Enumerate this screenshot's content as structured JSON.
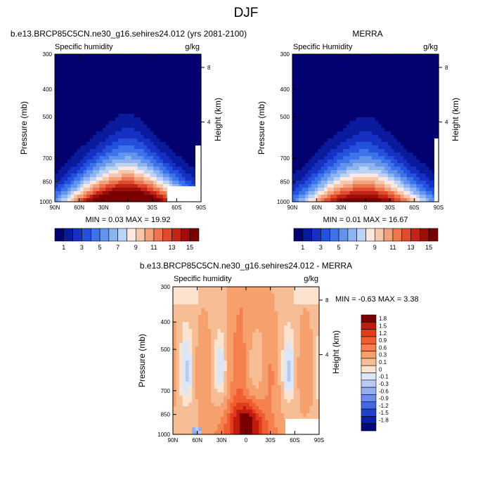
{
  "page": {
    "title": "DJF"
  },
  "panels": [
    {
      "id": "model",
      "title": "b.e13.BRCP85C5CN.ne30_g16.sehires24.012 (yrs 2081-2100)",
      "left_label": "Specific humidity",
      "right_label": "g/kg",
      "stats": "MIN =  0.03  MAX = 19.92"
    },
    {
      "id": "obs",
      "title": "MERRA",
      "left_label": "Specific Humidity",
      "right_label": "g/kg",
      "stats": "MIN =  0.01  MAX = 16.67"
    },
    {
      "id": "diff",
      "title": "b.e13.BRCP85C5CN.ne30_g16.sehires24.012 - MERRA",
      "left_label": "Specific humidity",
      "right_label": "g/kg",
      "stats": "MIN =  -0.63  MAX =   3.38"
    }
  ],
  "chart_data": [
    {
      "type": "heatmap",
      "panel": "model",
      "ylabel": "Pressure (mb)",
      "y2label": "Height (km)",
      "x_ticks": [
        "90N",
        "60N",
        "30N",
        "0",
        "30S",
        "60S",
        "90S"
      ],
      "x_range": [
        90,
        -90
      ],
      "y_ticks": [
        "300",
        "400",
        "500",
        "700",
        "850",
        "1000"
      ],
      "y_range": [
        300,
        1000
      ],
      "y_scale": "log",
      "y2_ticks": [
        "8",
        "4"
      ],
      "colorbar_labels": [
        "1",
        "3",
        "5",
        "7",
        "9",
        "11",
        "13",
        "15"
      ],
      "colorbar_colors": [
        "#03006f",
        "#0a1a9c",
        "#1630c4",
        "#2451dc",
        "#3c73ea",
        "#6294ee",
        "#8db4f1",
        "#bcd3f5",
        "#fbe9e1",
        "#f7c7ac",
        "#f3a07c",
        "#ec7650",
        "#df4b2c",
        "#c12517",
        "#9d0e0a",
        "#7a0000"
      ],
      "peak_value": 19.92
    },
    {
      "type": "heatmap",
      "panel": "obs",
      "ylabel": "Pressure (mb)",
      "y2label": "Height (km)",
      "x_ticks": [
        "90N",
        "60N",
        "30N",
        "0",
        "30S",
        "60S",
        "90S"
      ],
      "x_range": [
        90,
        -90
      ],
      "y_ticks": [
        "300",
        "400",
        "500",
        "700",
        "850",
        "1000"
      ],
      "y_range": [
        300,
        1000
      ],
      "y_scale": "log",
      "y2_ticks": [
        "8",
        "4"
      ],
      "colorbar_labels": [
        "1",
        "3",
        "5",
        "7",
        "9",
        "11",
        "13",
        "15"
      ],
      "colorbar_colors": [
        "#03006f",
        "#0a1a9c",
        "#1630c4",
        "#2451dc",
        "#3c73ea",
        "#6294ee",
        "#8db4f1",
        "#bcd3f5",
        "#fbe9e1",
        "#f7c7ac",
        "#f3a07c",
        "#ec7650",
        "#df4b2c",
        "#c12517",
        "#9d0e0a",
        "#7a0000"
      ],
      "peak_value": 16.67
    },
    {
      "type": "heatmap",
      "panel": "diff",
      "ylabel": "Pressure (mb)",
      "y2label": "Height (km)",
      "x_ticks": [
        "90N",
        "60N",
        "30N",
        "0",
        "30S",
        "60S",
        "90S"
      ],
      "x_range": [
        90,
        -90
      ],
      "y_ticks": [
        "300",
        "400",
        "500",
        "700",
        "850",
        "1000"
      ],
      "y_range": [
        300,
        1000
      ],
      "y_scale": "log",
      "y2_ticks": [
        "8",
        "4"
      ],
      "colorbar_labels": [
        "1.8",
        "1.5",
        "1.2",
        "0.9",
        "0.6",
        "0.3",
        "0.1",
        "0",
        "-0.1",
        "-0.3",
        "-0.6",
        "-0.9",
        "-1.2",
        "-1.5",
        "-1.8"
      ],
      "colorbar_colors": [
        "#7a0000",
        "#c01c0e",
        "#e03c1c",
        "#ef5e31",
        "#f4804e",
        "#f6a06e",
        "#f7bd94",
        "#fbe3cf",
        "#dbe6f7",
        "#b8caf2",
        "#94aeed",
        "#6c8ee8",
        "#4468df",
        "#2140cf",
        "#0a1fa6",
        "#04097a"
      ],
      "peak_value": 3.38,
      "min_value": -0.63
    }
  ]
}
